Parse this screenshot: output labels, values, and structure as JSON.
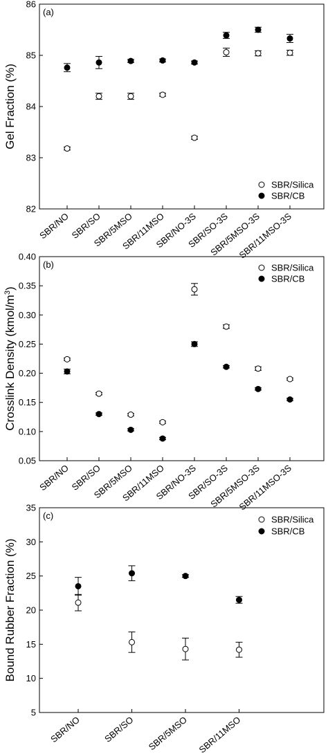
{
  "chart_data": [
    {
      "type": "scatter",
      "panel_label": "(a)",
      "ylabel": "Gel Fraction (%)",
      "ylim": [
        82,
        86
      ],
      "yticks": [
        "82",
        "83",
        "84",
        "85",
        "86"
      ],
      "categories": [
        "SBR/NO",
        "SBR/SO",
        "SBR/5MSO",
        "SBR/11MSO",
        "SBR/NO-3S",
        "SBR/SO-3S",
        "SBR/5MSO-3S",
        "SBR/11MSO-3S"
      ],
      "legend_position": "bottom-right",
      "series": [
        {
          "name": "SBR/Silica",
          "marker": "open",
          "values": [
            83.18,
            84.2,
            84.2,
            84.23,
            83.39,
            85.06,
            85.04,
            85.05
          ],
          "errors": [
            0.03,
            0.06,
            0.06,
            0.03,
            0.03,
            0.08,
            0.05,
            0.05
          ]
        },
        {
          "name": "SBR/CB",
          "marker": "filled",
          "values": [
            84.76,
            84.86,
            84.89,
            84.9,
            84.86,
            85.39,
            85.5,
            85.33
          ],
          "errors": [
            0.08,
            0.12,
            0.03,
            0.03,
            0.03,
            0.06,
            0.05,
            0.08
          ]
        }
      ]
    },
    {
      "type": "scatter",
      "panel_label": "(b)",
      "ylabel": "Crosslink Density (kmol/m",
      "ylabel_sup": "3",
      "ylabel_end": ")",
      "ylim": [
        0.05,
        0.4
      ],
      "yticks": [
        "0.05",
        "0.10",
        "0.15",
        "0.20",
        "0.25",
        "0.30",
        "0.35",
        "0.40"
      ],
      "categories": [
        "SBR/NO",
        "SBR/SO",
        "SBR/5MSO",
        "SBR/11MSO",
        "SBR/NO-3S",
        "SBR/SO-3S",
        "SBR/5MSO-3S",
        "SBR/11MSO-3S"
      ],
      "legend_position": "top-right",
      "series": [
        {
          "name": "SBR/Silica",
          "marker": "open",
          "values": [
            0.224,
            0.165,
            0.129,
            0.116,
            0.344,
            0.28,
            0.208,
            0.19
          ],
          "errors": [
            0.002,
            0.002,
            0.002,
            0.002,
            0.01,
            0.003,
            0.003,
            0.002
          ]
        },
        {
          "name": "SBR/CB",
          "marker": "filled",
          "values": [
            0.203,
            0.13,
            0.103,
            0.088,
            0.25,
            0.211,
            0.173,
            0.155
          ],
          "errors": [
            0.004,
            0.002,
            0.002,
            0.002,
            0.004,
            0.002,
            0.002,
            0.002
          ]
        }
      ]
    },
    {
      "type": "scatter",
      "panel_label": "(c)",
      "ylabel": "Bound Rubber Fraction (%)",
      "ylim": [
        5,
        35
      ],
      "yticks": [
        "5",
        "10",
        "15",
        "20",
        "25",
        "30",
        "35"
      ],
      "categories": [
        "SBR/NO",
        "SBR/SO",
        "SBR/5MSO",
        "SBR/11MSO"
      ],
      "legend_position": "top-right",
      "series": [
        {
          "name": "SBR/Silica",
          "marker": "open",
          "values": [
            21.1,
            15.3,
            14.3,
            14.2
          ],
          "errors": [
            1.2,
            1.5,
            1.6,
            1.1
          ]
        },
        {
          "name": "SBR/CB",
          "marker": "filled",
          "values": [
            23.5,
            25.4,
            25.0,
            21.5
          ],
          "errors": [
            1.3,
            1.1,
            0.2,
            0.5
          ]
        }
      ]
    }
  ]
}
